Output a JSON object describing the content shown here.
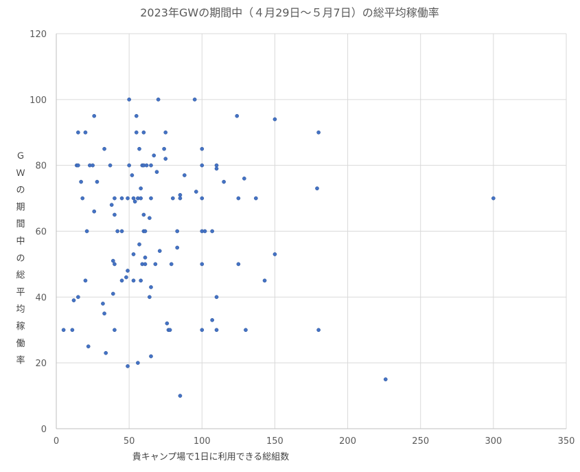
{
  "chart_data": {
    "type": "scatter",
    "title": "2023年GWの期間中（４月29日～５月7日）の総平均稼働率",
    "xlabel": "貴キャンプ場で1日に利用できる総組数",
    "ylabel": "ＧＷの期間中の総平均稼働率",
    "xlim": [
      0,
      350
    ],
    "ylim": [
      0,
      120
    ],
    "xticks": [
      0,
      50,
      100,
      150,
      200,
      250,
      300,
      350
    ],
    "yticks": [
      0,
      20,
      40,
      60,
      80,
      100,
      120
    ],
    "grid": true,
    "marker_color": "#4472c4",
    "points": [
      [
        5,
        30
      ],
      [
        11,
        30
      ],
      [
        12,
        39
      ],
      [
        14,
        80
      ],
      [
        15,
        80
      ],
      [
        15,
        90
      ],
      [
        15,
        40
      ],
      [
        17,
        75
      ],
      [
        18,
        70
      ],
      [
        20,
        45
      ],
      [
        20,
        90
      ],
      [
        21,
        60
      ],
      [
        22,
        25
      ],
      [
        23,
        80
      ],
      [
        25,
        80
      ],
      [
        26,
        66
      ],
      [
        26,
        95
      ],
      [
        28,
        75
      ],
      [
        32,
        38
      ],
      [
        33,
        35
      ],
      [
        33,
        85
      ],
      [
        34,
        23
      ],
      [
        37,
        80
      ],
      [
        38,
        68
      ],
      [
        39,
        51
      ],
      [
        39,
        41
      ],
      [
        40,
        50
      ],
      [
        40,
        30
      ],
      [
        40,
        65
      ],
      [
        40,
        70
      ],
      [
        42,
        60
      ],
      [
        45,
        70
      ],
      [
        45,
        60
      ],
      [
        45,
        45
      ],
      [
        48,
        46
      ],
      [
        49,
        70
      ],
      [
        49,
        48
      ],
      [
        49,
        19
      ],
      [
        50,
        100
      ],
      [
        50,
        80
      ],
      [
        52,
        77
      ],
      [
        53,
        53
      ],
      [
        53,
        45
      ],
      [
        53,
        70
      ],
      [
        54,
        69
      ],
      [
        55,
        90
      ],
      [
        55,
        95
      ],
      [
        56,
        20
      ],
      [
        56,
        70
      ],
      [
        57,
        56
      ],
      [
        57,
        85
      ],
      [
        58,
        73
      ],
      [
        58,
        70
      ],
      [
        58,
        45
      ],
      [
        59,
        80
      ],
      [
        59,
        50
      ],
      [
        60,
        90
      ],
      [
        60,
        65
      ],
      [
        60,
        80
      ],
      [
        60,
        60
      ],
      [
        61,
        60
      ],
      [
        61,
        52
      ],
      [
        61,
        50
      ],
      [
        62,
        80
      ],
      [
        64,
        40
      ],
      [
        64,
        64
      ],
      [
        65,
        70
      ],
      [
        65,
        80
      ],
      [
        65,
        43
      ],
      [
        65,
        22
      ],
      [
        67,
        83
      ],
      [
        68,
        50
      ],
      [
        69,
        78
      ],
      [
        70,
        100
      ],
      [
        71,
        54
      ],
      [
        74,
        85
      ],
      [
        75,
        90
      ],
      [
        75,
        82
      ],
      [
        76,
        32
      ],
      [
        77,
        30
      ],
      [
        78,
        30
      ],
      [
        79,
        50
      ],
      [
        80,
        70
      ],
      [
        83,
        60
      ],
      [
        83,
        55
      ],
      [
        85,
        71
      ],
      [
        85,
        70
      ],
      [
        85,
        10
      ],
      [
        88,
        77
      ],
      [
        95,
        100
      ],
      [
        96,
        72
      ],
      [
        100,
        85
      ],
      [
        100,
        80
      ],
      [
        100,
        70
      ],
      [
        100,
        60
      ],
      [
        100,
        50
      ],
      [
        100,
        30
      ],
      [
        102,
        60
      ],
      [
        107,
        60
      ],
      [
        107,
        33
      ],
      [
        110,
        80
      ],
      [
        110,
        79
      ],
      [
        110,
        40
      ],
      [
        110,
        30
      ],
      [
        115,
        75
      ],
      [
        124,
        95
      ],
      [
        125,
        70
      ],
      [
        125,
        50
      ],
      [
        129,
        76
      ],
      [
        130,
        30
      ],
      [
        137,
        70
      ],
      [
        143,
        45
      ],
      [
        150,
        94
      ],
      [
        150,
        53
      ],
      [
        179,
        73
      ],
      [
        180,
        90
      ],
      [
        180,
        30
      ],
      [
        226,
        15
      ],
      [
        300,
        70
      ]
    ]
  }
}
